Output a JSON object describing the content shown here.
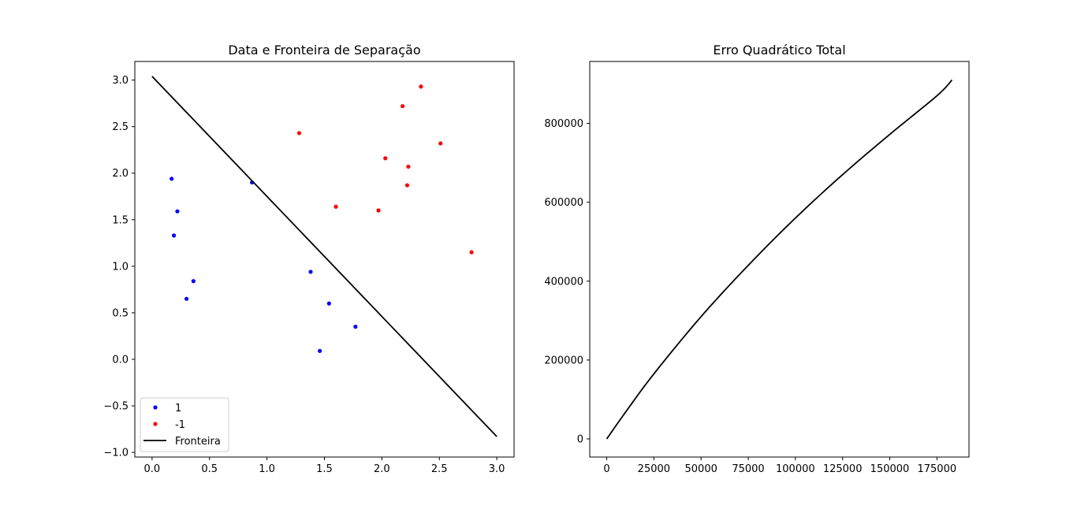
{
  "chart_data": [
    {
      "type": "scatter",
      "title": "Data e Fronteira de Separação",
      "xlabel": "",
      "ylabel": "",
      "xlim": [
        -0.15,
        3.15
      ],
      "ylim": [
        -1.05,
        3.2
      ],
      "x_ticks": [
        0.0,
        0.5,
        1.0,
        1.5,
        2.0,
        2.5,
        3.0
      ],
      "x_tick_labels": [
        "0.0",
        "0.5",
        "1.0",
        "1.5",
        "2.0",
        "2.5",
        "3.0"
      ],
      "y_ticks": [
        -1.0,
        -0.5,
        0.0,
        0.5,
        1.0,
        1.5,
        2.0,
        2.5,
        3.0
      ],
      "y_tick_labels": [
        "−1.0",
        "−0.5",
        "0.0",
        "0.5",
        "1.0",
        "1.5",
        "2.0",
        "2.5",
        "3.0"
      ],
      "grid": false,
      "legend_position": "lower-left",
      "series": [
        {
          "name": "1",
          "kind": "points",
          "color": "#0000ff",
          "points": [
            [
              0.17,
              1.94
            ],
            [
              0.22,
              1.59
            ],
            [
              0.19,
              1.33
            ],
            [
              0.36,
              0.84
            ],
            [
              0.3,
              0.65
            ],
            [
              0.87,
              1.9
            ],
            [
              1.38,
              0.94
            ],
            [
              1.54,
              0.6
            ],
            [
              1.77,
              0.35
            ],
            [
              1.46,
              0.09
            ]
          ]
        },
        {
          "name": "-1",
          "kind": "points",
          "color": "#ff0000",
          "points": [
            [
              1.28,
              2.43
            ],
            [
              1.6,
              1.64
            ],
            [
              1.97,
              1.6
            ],
            [
              2.03,
              2.16
            ],
            [
              2.18,
              2.72
            ],
            [
              2.34,
              2.93
            ],
            [
              2.23,
              2.07
            ],
            [
              2.22,
              1.87
            ],
            [
              2.51,
              2.32
            ],
            [
              2.78,
              1.15
            ]
          ]
        },
        {
          "name": "Fronteira",
          "kind": "line",
          "color": "#000000",
          "points": [
            [
              0.0,
              3.04
            ],
            [
              3.0,
              -0.83
            ]
          ]
        }
      ]
    },
    {
      "type": "line",
      "title": "Erro Quadrático Total",
      "xlabel": "",
      "ylabel": "",
      "xlim": [
        -9000,
        192000
      ],
      "ylim": [
        -46000,
        957000
      ],
      "x_ticks": [
        0,
        25000,
        50000,
        75000,
        100000,
        125000,
        150000,
        175000
      ],
      "x_tick_labels": [
        "0",
        "25000",
        "50000",
        "75000",
        "100000",
        "125000",
        "150000",
        "175000"
      ],
      "y_ticks": [
        0,
        200000,
        400000,
        600000,
        800000
      ],
      "y_tick_labels": [
        "0",
        "200000",
        "400000",
        "600000",
        "800000"
      ],
      "grid": false,
      "series": [
        {
          "color": "#000000",
          "points": [
            [
              0,
              0
            ],
            [
              10000,
              68000
            ],
            [
              25000,
              165000
            ],
            [
              50000,
              310000
            ],
            [
              75000,
              440000
            ],
            [
              100000,
              560000
            ],
            [
              125000,
              670000
            ],
            [
              150000,
              772000
            ],
            [
              175000,
              870000
            ],
            [
              183000,
              910000
            ]
          ]
        }
      ]
    }
  ]
}
